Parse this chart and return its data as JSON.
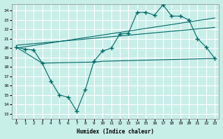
{
  "xlabel": "Humidex (Indice chaleur)",
  "ylabel": "",
  "background_color": "#c8eee8",
  "grid_color": "#aad8d0",
  "line_color": "#006868",
  "xlim": [
    -0.5,
    23.5
  ],
  "ylim": [
    12.5,
    24.7
  ],
  "xticks": [
    0,
    1,
    2,
    3,
    4,
    5,
    6,
    7,
    8,
    9,
    10,
    11,
    12,
    13,
    14,
    15,
    16,
    17,
    18,
    19,
    20,
    21,
    22,
    23
  ],
  "yticks": [
    13,
    14,
    15,
    16,
    17,
    18,
    19,
    20,
    21,
    22,
    23,
    24
  ],
  "series1_x": [
    0,
    1,
    2,
    3,
    4,
    5,
    6,
    7,
    8,
    9,
    10,
    11,
    12,
    13,
    14,
    15,
    16,
    17,
    18,
    19,
    20,
    21,
    22,
    23
  ],
  "series1_y": [
    20.1,
    19.9,
    19.8,
    18.4,
    16.5,
    15.0,
    14.8,
    13.3,
    15.6,
    18.6,
    19.7,
    20.0,
    21.5,
    21.6,
    23.8,
    23.8,
    23.5,
    24.6,
    23.4,
    23.4,
    23.0,
    21.0,
    20.1,
    18.9
  ],
  "series2_x": [
    0,
    3,
    8,
    9,
    10,
    23
  ],
  "series2_y": [
    20.1,
    18.4,
    18.5,
    18.5,
    18.6,
    18.9
  ],
  "series3_x": [
    0,
    23
  ],
  "series3_y": [
    20.0,
    23.2
  ],
  "series4_x": [
    0,
    23
  ],
  "series4_y": [
    20.3,
    22.2
  ]
}
